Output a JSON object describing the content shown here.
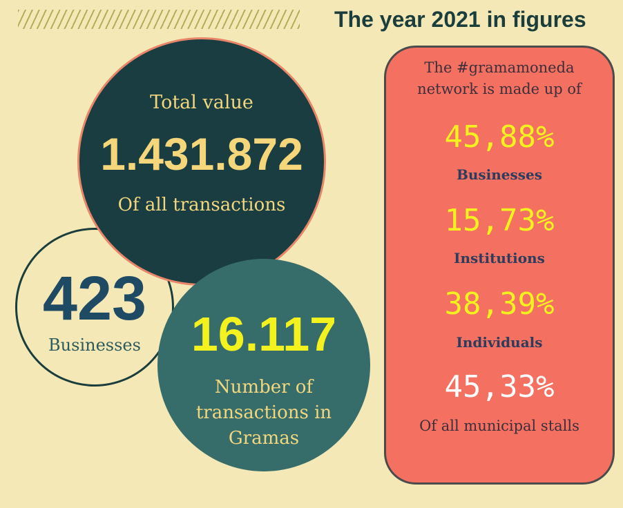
{
  "header": {
    "title": "The year 2021 in figures"
  },
  "total": {
    "label": "Total value",
    "value": "1.431.872",
    "sub": "Of all transactions"
  },
  "businesses": {
    "value": "423",
    "label": "Businesses"
  },
  "transactions": {
    "value": "16.117",
    "sub": "Number of transactions in Gramas"
  },
  "network": {
    "intro": "The #gramamoneda network is made up of",
    "items": [
      {
        "percent": "45,88%",
        "label": "Businesses"
      },
      {
        "percent": "15,73%",
        "label": "Institutions"
      },
      {
        "percent": "38,39%",
        "label": "Individuals"
      }
    ],
    "stalls": {
      "percent": "45,33%",
      "label": "Of all municipal stalls"
    }
  },
  "colors": {
    "background": "#f3e8b6",
    "dark_teal": "#193d40",
    "teal": "#366d6b",
    "coral": "#f47060",
    "yellow": "#f3f21e",
    "gold": "#f5d67a"
  }
}
